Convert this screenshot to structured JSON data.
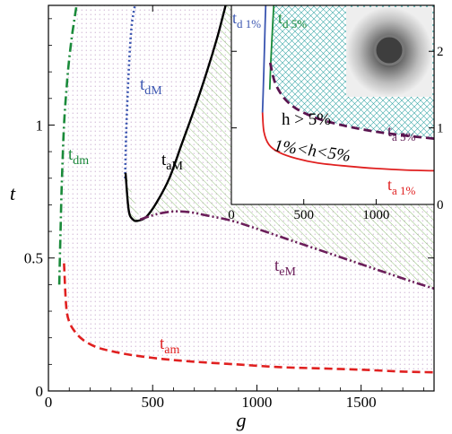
{
  "chart_data": {
    "type": "line",
    "xlabel": "g",
    "ylabel": "t",
    "xlim": [
      0,
      1850
    ],
    "ylim": [
      0,
      1.45
    ],
    "x_ticks": [
      0,
      500,
      1000,
      1500
    ],
    "y_ticks": [
      0,
      0.5,
      1
    ],
    "x_tick_labels": [
      "0",
      "500",
      "1000",
      "1500"
    ],
    "y_tick_labels": [
      "0",
      "0.5",
      "1"
    ],
    "regions": [
      {
        "name": "region-dotted",
        "pattern": "dots",
        "color": "#c9a8d0"
      },
      {
        "name": "region-hatched",
        "pattern": "diagonal-hatch",
        "color": "#7bb35e"
      }
    ],
    "series": [
      {
        "label_main": "t",
        "label_sub": "am",
        "color": "#e02020",
        "style": "dashed",
        "x": [
          75,
          85,
          100,
          130,
          170,
          230,
          300,
          400,
          550,
          700,
          900,
          1100,
          1300,
          1500,
          1700,
          1850
        ],
        "y": [
          0.48,
          0.32,
          0.26,
          0.22,
          0.19,
          0.165,
          0.15,
          0.135,
          0.12,
          0.11,
          0.1,
          0.09,
          0.085,
          0.08,
          0.073,
          0.07
        ]
      },
      {
        "label_main": "t",
        "label_sub": "dm",
        "color": "#1a8a3a",
        "style": "dash-dot",
        "x": [
          52,
          58,
          65,
          75,
          88,
          100,
          112,
          125,
          135
        ],
        "y": [
          0.4,
          0.6,
          0.8,
          1.0,
          1.15,
          1.25,
          1.33,
          1.4,
          1.45
        ]
      },
      {
        "label_main": "t",
        "label_sub": "dM",
        "color": "#3a55b0",
        "style": "dotted",
        "x": [
          368,
          372,
          378,
          385,
          392,
          400,
          408,
          415
        ],
        "y": [
          0.8,
          0.95,
          1.08,
          1.2,
          1.3,
          1.38,
          1.42,
          1.45
        ]
      },
      {
        "label_main": "t",
        "label_sub": "aM",
        "color": "#000000",
        "style": "solid",
        "x": [
          370,
          385,
          405,
          430,
          470,
          520,
          580,
          640,
          700,
          760,
          810,
          850
        ],
        "y": [
          0.82,
          0.68,
          0.645,
          0.64,
          0.655,
          0.71,
          0.8,
          0.93,
          1.06,
          1.2,
          1.33,
          1.45
        ]
      },
      {
        "label_main": "t",
        "label_sub": "eM",
        "color": "#6b1e5a",
        "style": "dash-dot-dot",
        "x": [
          440,
          520,
          600,
          680,
          760,
          880,
          1000,
          1150,
          1300,
          1450,
          1600,
          1750,
          1850
        ],
        "y": [
          0.645,
          0.665,
          0.675,
          0.672,
          0.66,
          0.64,
          0.61,
          0.57,
          0.53,
          0.49,
          0.45,
          0.41,
          0.385
        ]
      }
    ],
    "inset": {
      "xlim": [
        0,
        1400
      ],
      "ylim": [
        0,
        2.6
      ],
      "x_ticks": [
        0,
        500,
        1000
      ],
      "y_ticks": [
        0,
        1,
        2
      ],
      "x_tick_labels": [
        "0",
        "500",
        "1000"
      ],
      "y_tick_labels": [
        "0",
        "1",
        "2"
      ],
      "series": [
        {
          "label_main": "t",
          "label_sub": "d 1%",
          "color": "#3a55b0",
          "style": "solid",
          "x": [
            215,
            222,
            228,
            233,
            237
          ],
          "y": [
            1.2,
            1.6,
            2.0,
            2.35,
            2.6
          ]
        },
        {
          "label_main": "t",
          "label_sub": "d 5%",
          "color": "#1a8a3a",
          "style": "solid",
          "x": [
            265,
            272,
            280,
            287,
            293
          ],
          "y": [
            1.5,
            1.85,
            2.15,
            2.4,
            2.6
          ]
        },
        {
          "label_main": "t",
          "label_sub": "a 5%",
          "color": "#5a1550",
          "style": "dashed",
          "x": [
            268,
            300,
            360,
            450,
            600,
            800,
            1000,
            1200,
            1400
          ],
          "y": [
            1.85,
            1.6,
            1.4,
            1.25,
            1.12,
            1.02,
            0.95,
            0.9,
            0.86
          ]
        },
        {
          "label_main": "t",
          "label_sub": "a 1%",
          "color": "#e02020",
          "style": "solid",
          "x": [
            215,
            225,
            260,
            330,
            450,
            600,
            800,
            1000,
            1200,
            1400
          ],
          "y": [
            1.2,
            0.95,
            0.78,
            0.68,
            0.6,
            0.54,
            0.5,
            0.47,
            0.45,
            0.44
          ]
        }
      ],
      "annotations": [
        "h > 5%",
        "1%<h<5%"
      ]
    }
  }
}
